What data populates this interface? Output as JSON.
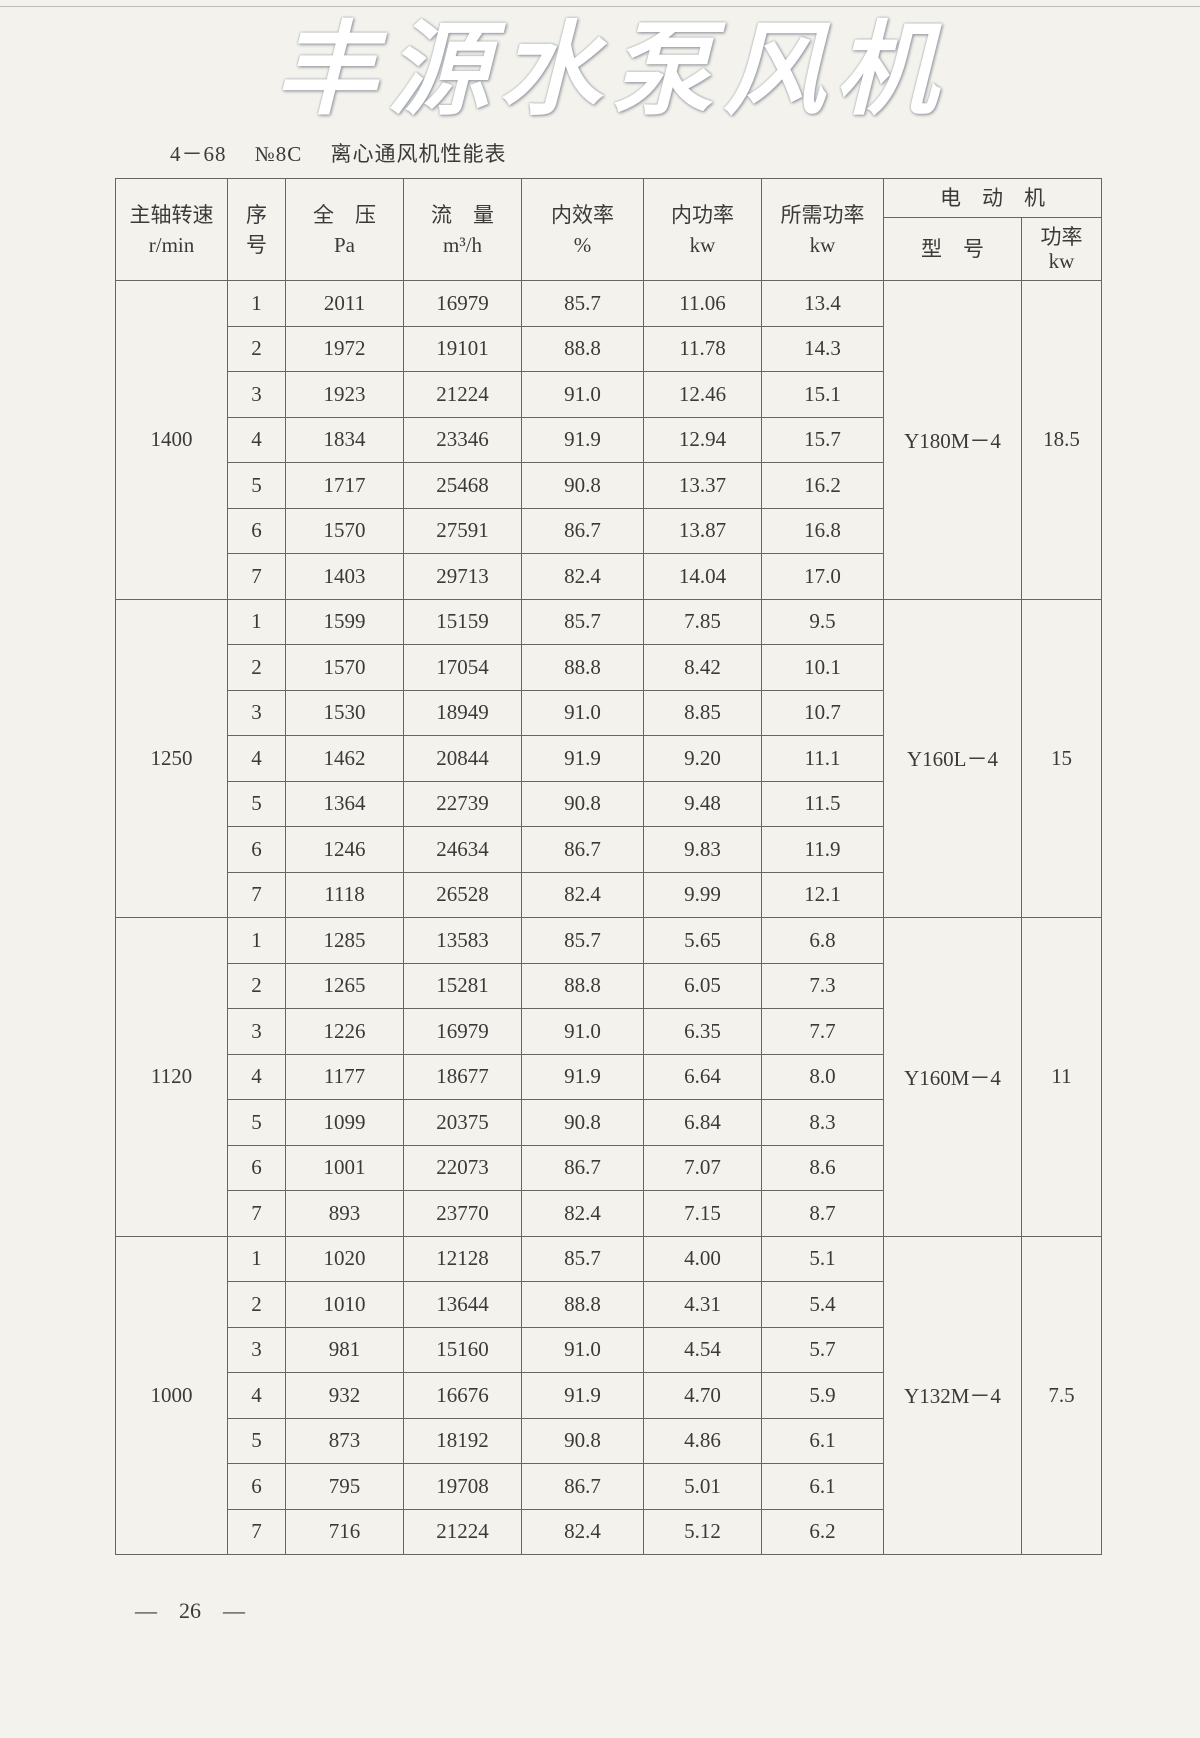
{
  "title": {
    "model": "4－68",
    "number": "№8C",
    "name": "离心通风机性能表"
  },
  "headers": {
    "speed": "主轴转速",
    "speed_unit": "r/min",
    "seq": "序",
    "seq2": "号",
    "pressure": "全　压",
    "pressure_unit": "Pa",
    "flow": "流　量",
    "flow_unit": "m³/h",
    "efficiency": "内效率",
    "efficiency_unit": "%",
    "inner_power": "内功率",
    "inner_power_unit": "kw",
    "required_power": "所需功率",
    "required_power_unit": "kw",
    "motor": "电　动　机",
    "motor_type": "型　号",
    "motor_power": "功率",
    "motor_power_unit": "kw"
  },
  "groups": [
    {
      "speed": "1400",
      "motor_type": "Y180M－4",
      "motor_power": "18.5",
      "rows": [
        [
          "1",
          "2011",
          "16979",
          "85.7",
          "11.06",
          "13.4"
        ],
        [
          "2",
          "1972",
          "19101",
          "88.8",
          "11.78",
          "14.3"
        ],
        [
          "3",
          "1923",
          "21224",
          "91.0",
          "12.46",
          "15.1"
        ],
        [
          "4",
          "1834",
          "23346",
          "91.9",
          "12.94",
          "15.7"
        ],
        [
          "5",
          "1717",
          "25468",
          "90.8",
          "13.37",
          "16.2"
        ],
        [
          "6",
          "1570",
          "27591",
          "86.7",
          "13.87",
          "16.8"
        ],
        [
          "7",
          "1403",
          "29713",
          "82.4",
          "14.04",
          "17.0"
        ]
      ]
    },
    {
      "speed": "1250",
      "motor_type": "Y160L－4",
      "motor_power": "15",
      "rows": [
        [
          "1",
          "1599",
          "15159",
          "85.7",
          "7.85",
          "9.5"
        ],
        [
          "2",
          "1570",
          "17054",
          "88.8",
          "8.42",
          "10.1"
        ],
        [
          "3",
          "1530",
          "18949",
          "91.0",
          "8.85",
          "10.7"
        ],
        [
          "4",
          "1462",
          "20844",
          "91.9",
          "9.20",
          "11.1"
        ],
        [
          "5",
          "1364",
          "22739",
          "90.8",
          "9.48",
          "11.5"
        ],
        [
          "6",
          "1246",
          "24634",
          "86.7",
          "9.83",
          "11.9"
        ],
        [
          "7",
          "1118",
          "26528",
          "82.4",
          "9.99",
          "12.1"
        ]
      ]
    },
    {
      "speed": "1120",
      "motor_type": "Y160M－4",
      "motor_power": "11",
      "rows": [
        [
          "1",
          "1285",
          "13583",
          "85.7",
          "5.65",
          "6.8"
        ],
        [
          "2",
          "1265",
          "15281",
          "88.8",
          "6.05",
          "7.3"
        ],
        [
          "3",
          "1226",
          "16979",
          "91.0",
          "6.35",
          "7.7"
        ],
        [
          "4",
          "1177",
          "18677",
          "91.9",
          "6.64",
          "8.0"
        ],
        [
          "5",
          "1099",
          "20375",
          "90.8",
          "6.84",
          "8.3"
        ],
        [
          "6",
          "1001",
          "22073",
          "86.7",
          "7.07",
          "8.6"
        ],
        [
          "7",
          "893",
          "23770",
          "82.4",
          "7.15",
          "8.7"
        ]
      ]
    },
    {
      "speed": "1000",
      "motor_type": "Y132M－4",
      "motor_power": "7.5",
      "rows": [
        [
          "1",
          "1020",
          "12128",
          "85.7",
          "4.00",
          "5.1"
        ],
        [
          "2",
          "1010",
          "13644",
          "88.8",
          "4.31",
          "5.4"
        ],
        [
          "3",
          "981",
          "15160",
          "91.0",
          "4.54",
          "5.7"
        ],
        [
          "4",
          "932",
          "16676",
          "91.9",
          "4.70",
          "5.9"
        ],
        [
          "5",
          "873",
          "18192",
          "90.8",
          "4.86",
          "6.1"
        ],
        [
          "6",
          "795",
          "19708",
          "86.7",
          "5.01",
          "6.1"
        ],
        [
          "7",
          "716",
          "21224",
          "82.4",
          "5.12",
          "6.2"
        ]
      ]
    }
  ],
  "watermark": "丰源水泵风机",
  "page_number": "—　26　—"
}
